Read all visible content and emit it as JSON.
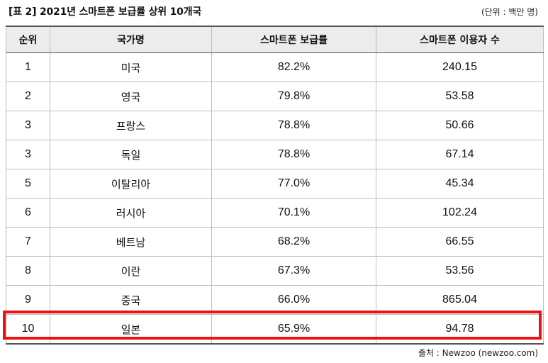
{
  "title": "[표 2] 2021년 스마트폰 보급률 상위 10개국",
  "unit_note": "(단위 : 백만 명)",
  "table": {
    "headers": [
      "순위",
      "국가명",
      "스마트폰 보급률",
      "스마트폰 이용자 수"
    ],
    "rows": [
      [
        "1",
        "미국",
        "82.2%",
        "240.15"
      ],
      [
        "2",
        "영국",
        "79.8%",
        "53.58"
      ],
      [
        "3",
        "프랑스",
        "78.8%",
        "50.66"
      ],
      [
        "3",
        "독일",
        "78.8%",
        "67.14"
      ],
      [
        "5",
        "이탈리아",
        "77.0%",
        "45.34"
      ],
      [
        "6",
        "러시아",
        "70.1%",
        "102.24"
      ],
      [
        "7",
        "베트남",
        "68.2%",
        "66.55"
      ],
      [
        "8",
        "이란",
        "67.3%",
        "53.56"
      ],
      [
        "9",
        "중국",
        "66.0%",
        "865.04"
      ],
      [
        "10",
        "일본",
        "65.9%",
        "94.78"
      ]
    ]
  },
  "highlight_color": "#ee1111",
  "source": "출처 : Newzoo (newzoo.com)"
}
